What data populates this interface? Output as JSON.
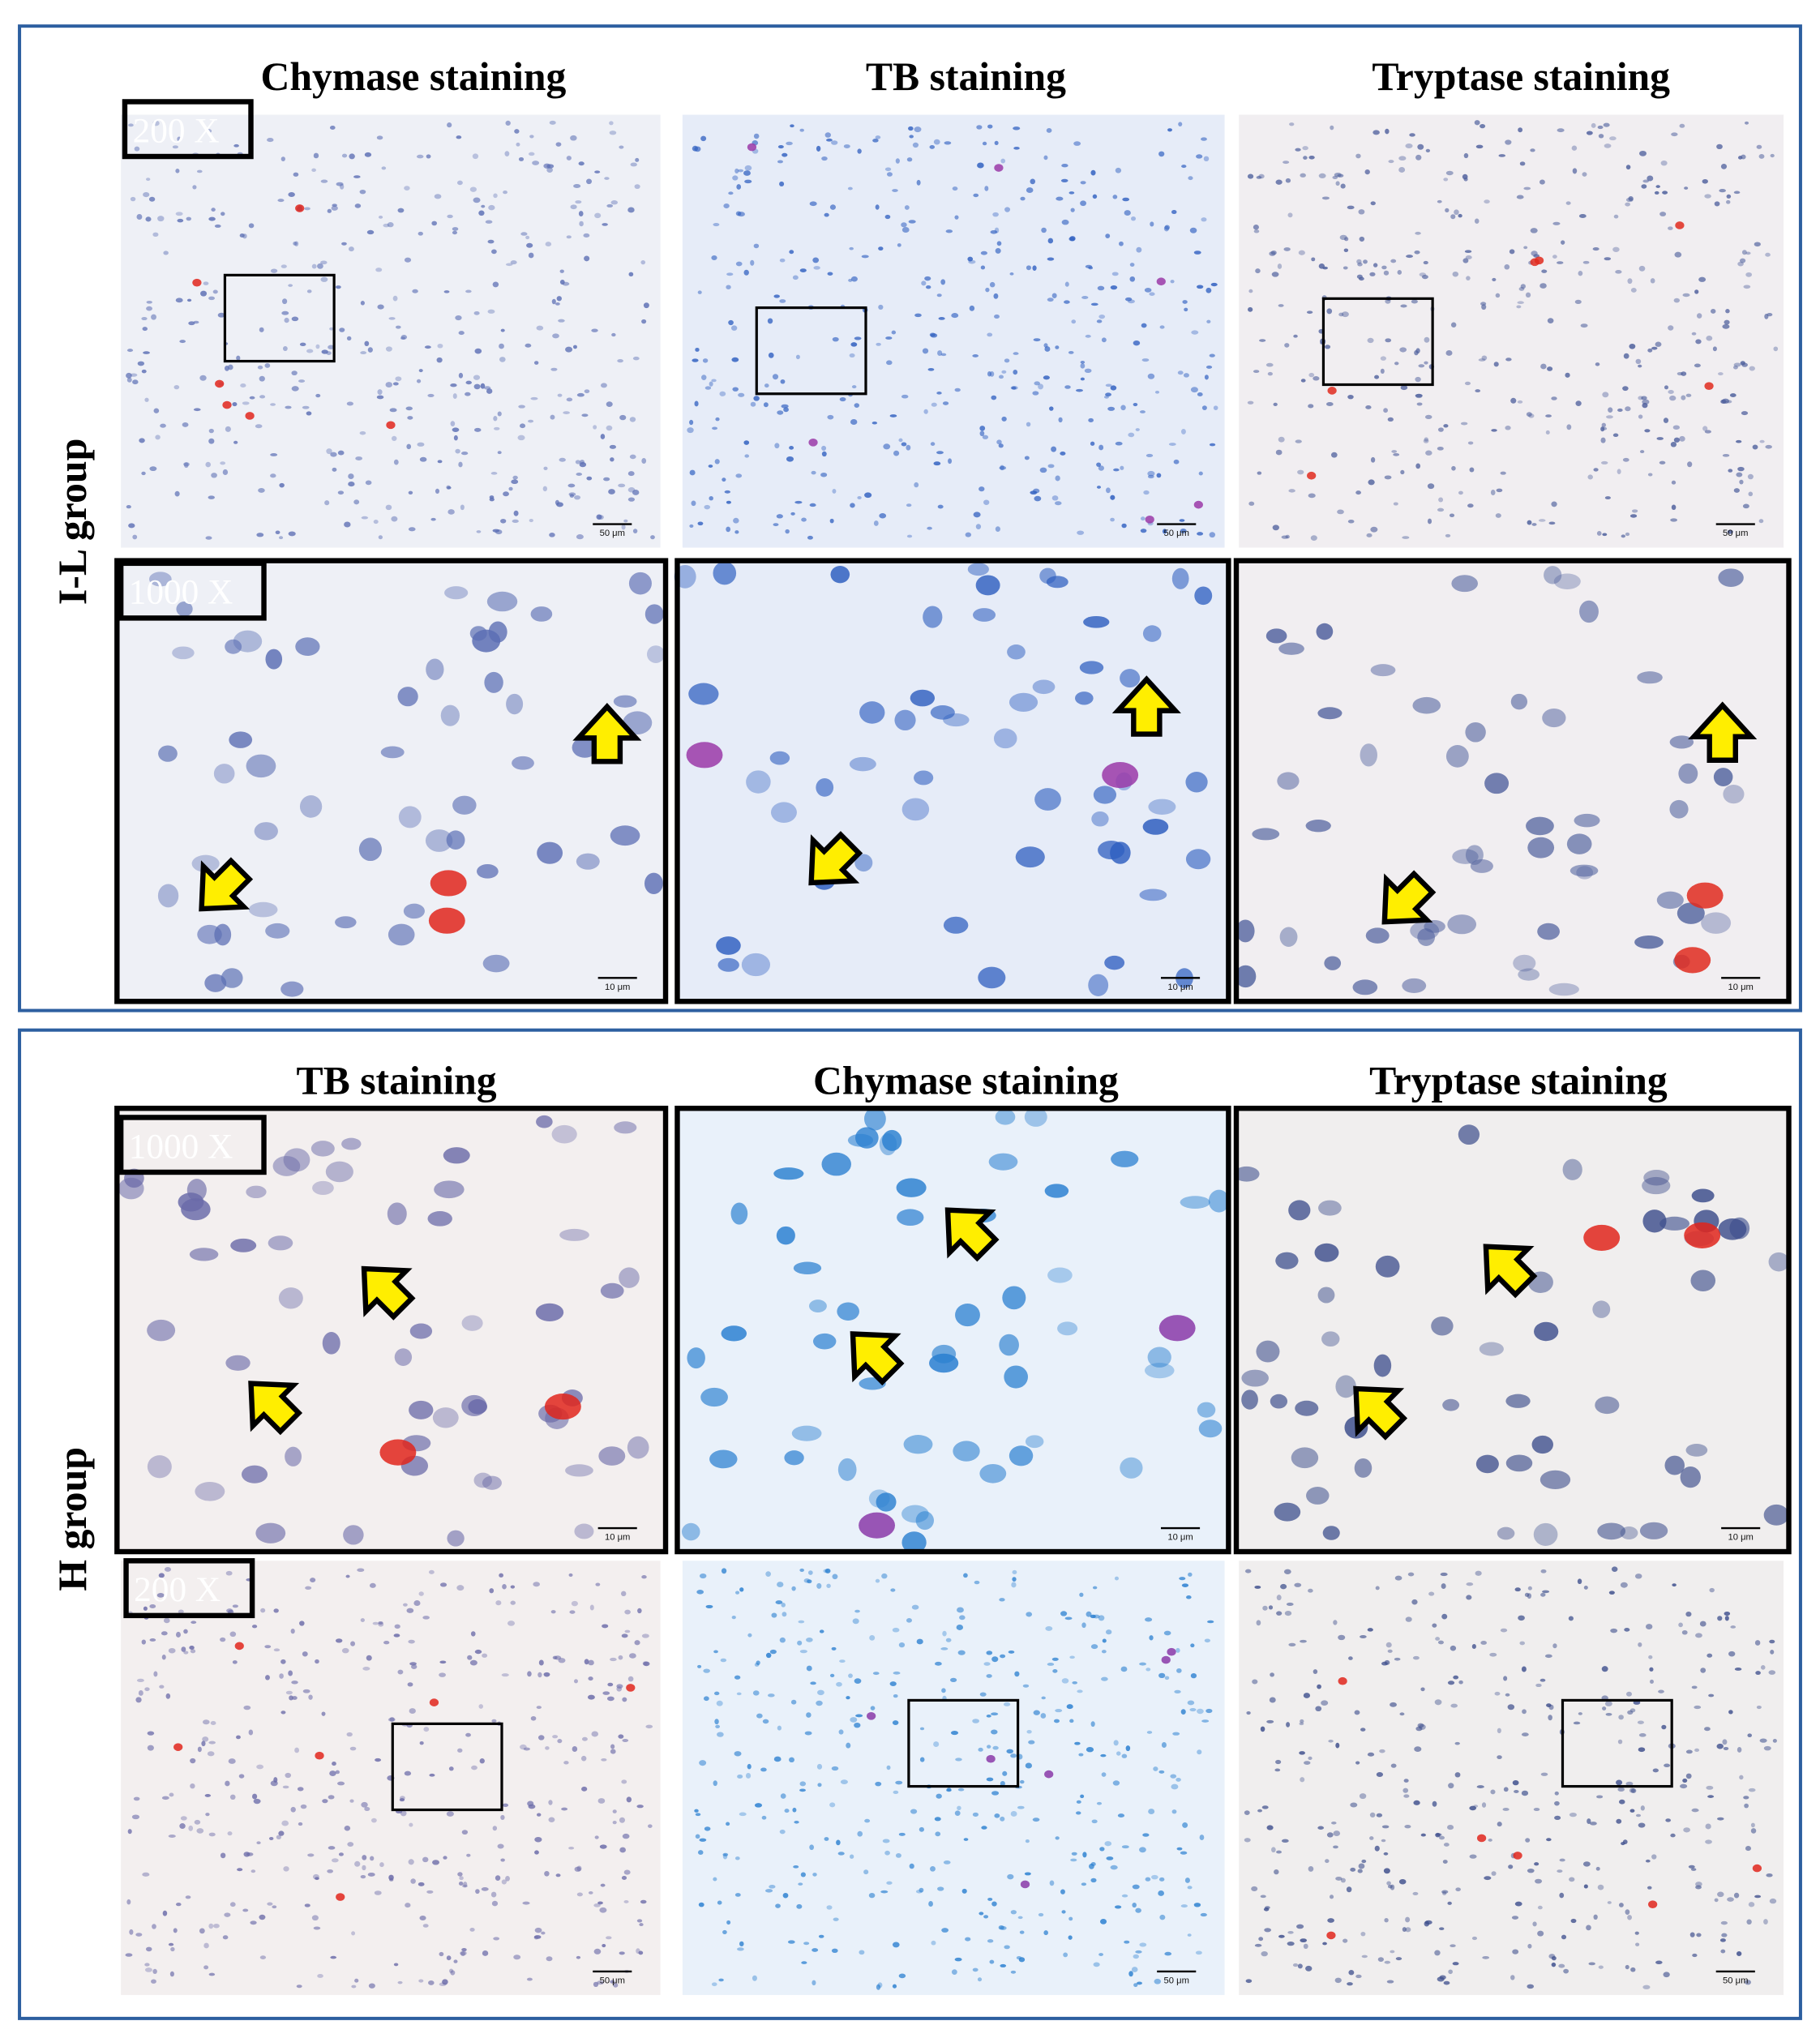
{
  "panels": [
    {
      "group_label": "I-L group",
      "column_titles": [
        "Chymase staining",
        "TB staining",
        "Tryptase staining"
      ],
      "low_mag_label": "200 X",
      "high_mag_label": "1000 X",
      "low_mag_scale_bars": [
        "50 μm",
        "50 μm",
        "50 μm"
      ],
      "high_mag_scale_bars": [
        "10 μm",
        "10 μm",
        "10 μm"
      ]
    },
    {
      "group_label": "H group",
      "column_titles": [
        "TB staining",
        "Chymase staining",
        "Tryptase staining"
      ],
      "low_mag_label": "200 X",
      "high_mag_label": "1000 X",
      "low_mag_scale_bars": [
        "50 μm",
        "50 μm",
        "50 μm"
      ],
      "high_mag_scale_bars": [
        "10 μm",
        "10 μm",
        "10 μm"
      ]
    }
  ]
}
